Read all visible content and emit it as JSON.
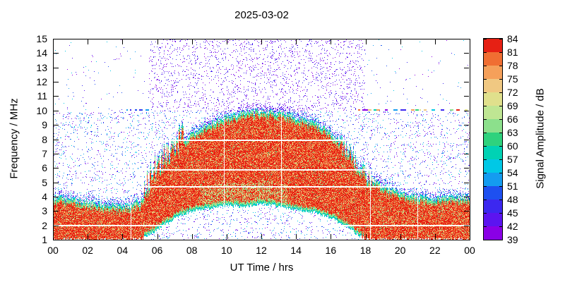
{
  "chart_data": {
    "type": "heatmap",
    "title": "2025-03-02",
    "xlabel": "UT Time / hrs",
    "ylabel": "Frequency / MHz",
    "x_range_hours": [
      0,
      24
    ],
    "x_tick_hours": [
      0,
      2,
      4,
      6,
      8,
      10,
      12,
      14,
      16,
      18,
      20,
      22,
      24
    ],
    "x_tick_labels": [
      "00",
      "02",
      "04",
      "06",
      "08",
      "10",
      "12",
      "14",
      "16",
      "18",
      "20",
      "22",
      "00"
    ],
    "y_range_mhz": [
      1,
      15
    ],
    "y_ticks": [
      1,
      2,
      3,
      4,
      5,
      6,
      7,
      8,
      9,
      10,
      11,
      12,
      13,
      14,
      15
    ],
    "background_color": "#ffffff",
    "colorbar": {
      "label": "Signal Amplitude / dB",
      "ticks": [
        39,
        42,
        45,
        48,
        51,
        54,
        57,
        60,
        63,
        66,
        69,
        72,
        75,
        78,
        81,
        84
      ],
      "palette": [
        "#8a00e6",
        "#5c14f0",
        "#3c28f0",
        "#1e50f0",
        "#149cf0",
        "#00c8e6",
        "#00d2b4",
        "#2ed27d",
        "#8ce08c",
        "#bfe693",
        "#e0e08c",
        "#f0c882",
        "#f5a05a",
        "#f06e32",
        "#e62014"
      ]
    },
    "heatmap_summary": {
      "description": "24-hour HF spectrogram for 2025-03-02: continuous strong signal (red, 78-84 dB) from 1 MHz up to a diurnally varying upper frequency limit (about 4 MHz at night, rising after 05:30 UT to about 10 MHz near 12 UT, falling back by 19 UT). Cyan/green fringes line the band edges; a white no-signal gap sits below about 3.5 MHz between 06 and 18 UT; sparse violet noise speckle fills 10-15 MHz between about 05:30 and 18:00 UT; horizontal white interference gap lines cross the band; faint blue speckle is scattered below 10 MHz at all times; short multicoloured dashes appear near 10 MHz around 04-05 UT and 18-24 UT.",
      "hours_ut": [
        0,
        1,
        2,
        3,
        4,
        5,
        6,
        7,
        8,
        9,
        10,
        11,
        12,
        13,
        14,
        15,
        16,
        17,
        18,
        19,
        20,
        21,
        22,
        23,
        24
      ],
      "envelope_upper_mhz": [
        4.0,
        3.8,
        3.6,
        3.4,
        3.3,
        3.6,
        5.8,
        7.4,
        8.4,
        9.1,
        9.6,
        9.9,
        10.0,
        9.9,
        9.6,
        9.2,
        8.5,
        7.3,
        5.6,
        4.7,
        4.3,
        4.0,
        3.9,
        3.9,
        4.0
      ],
      "envelope_lower_mhz": [
        1.0,
        1.0,
        1.0,
        1.0,
        1.0,
        1.0,
        1.7,
        2.5,
        3.0,
        3.2,
        3.4,
        3.3,
        3.5,
        3.3,
        3.1,
        2.9,
        2.5,
        1.8,
        1.0,
        1.0,
        1.0,
        1.0,
        1.0,
        1.0,
        1.0
      ],
      "interference_gap_lines_mhz": [
        2.0,
        4.7,
        5.9,
        8.0
      ],
      "noise_speckle_box": {
        "t_hours": [
          5.5,
          18
        ],
        "f_mhz": [
          10,
          15
        ],
        "amplitude_db": [
          39,
          48
        ]
      },
      "dash_line_10mhz": {
        "f_mhz": 10.1,
        "left_t_hours": [
          4.2,
          5.5
        ],
        "right_t_hours": [
          17.6,
          24
        ]
      },
      "peak_amplitude_db": 84
    }
  }
}
